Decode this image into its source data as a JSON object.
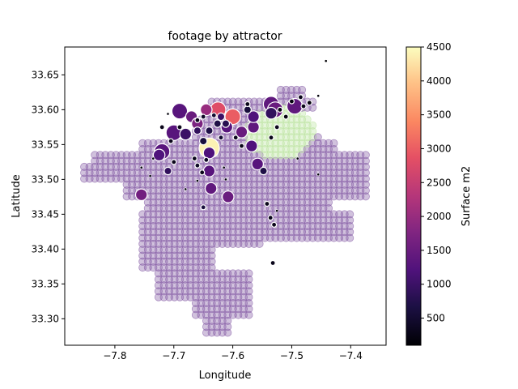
{
  "chart_data": {
    "type": "scatter",
    "title": "footage by attractor",
    "xlabel": "Longitude",
    "ylabel": "Latitude",
    "xlim": [
      -7.885,
      -7.34
    ],
    "ylim": [
      33.262,
      33.69
    ],
    "xticks": [
      -7.8,
      -7.7,
      -7.6,
      -7.5,
      -7.4
    ],
    "xtick_labels": [
      "−7.8",
      "−7.7",
      "−7.6",
      "−7.5",
      "−7.4"
    ],
    "yticks": [
      33.3,
      33.35,
      33.4,
      33.45,
      33.5,
      33.55,
      33.6,
      33.65
    ],
    "ytick_labels": [
      "33.30",
      "33.35",
      "33.40",
      "33.45",
      "33.50",
      "33.55",
      "33.60",
      "33.65"
    ],
    "grid": false,
    "colorbar": {
      "label": "Surface m2",
      "colormap": "magma",
      "range": [
        100,
        4500
      ],
      "ticks": [
        500,
        1000,
        1500,
        2000,
        2500,
        3000,
        3500,
        4000,
        4500
      ],
      "tick_labels": [
        "500",
        "1000",
        "1500",
        "2000",
        "2500",
        "3000",
        "3500",
        "4000",
        "4500"
      ]
    },
    "background_grid": {
      "description_values": "regular lattice of semi-transparent markers over the city area, mostly ~1600 m2 (purple) with greenish-yellow highlights near -7.52,33.57",
      "color": "#7b4f9e",
      "opacity": 0.35
    },
    "series": [
      {
        "points": [
          {
            "lon": -7.69,
            "lat": 33.598,
            "value": 1300,
            "size": "l"
          },
          {
            "lon": -7.67,
            "lat": 33.59,
            "value": 1500,
            "size": "m"
          },
          {
            "lon": -7.66,
            "lat": 33.58,
            "value": 1700,
            "size": "m"
          },
          {
            "lon": -7.645,
            "lat": 33.6,
            "value": 2000,
            "size": "m"
          },
          {
            "lon": -7.625,
            "lat": 33.6,
            "value": 2800,
            "size": "l"
          },
          {
            "lon": -7.6,
            "lat": 33.59,
            "value": 3000,
            "size": "l"
          },
          {
            "lon": -7.64,
            "lat": 33.545,
            "value": 4400,
            "size": "xl"
          },
          {
            "lon": -7.7,
            "lat": 33.567,
            "value": 1300,
            "size": "l"
          },
          {
            "lon": -7.72,
            "lat": 33.54,
            "value": 1300,
            "size": "l"
          },
          {
            "lon": -7.725,
            "lat": 33.535,
            "value": 1200,
            "size": "m"
          },
          {
            "lon": -7.71,
            "lat": 33.512,
            "value": 900,
            "size": "s"
          },
          {
            "lon": -7.68,
            "lat": 33.565,
            "value": 1000,
            "size": "m"
          },
          {
            "lon": -7.66,
            "lat": 33.57,
            "value": 900,
            "size": "s"
          },
          {
            "lon": -7.64,
            "lat": 33.538,
            "value": 1200,
            "size": "m"
          },
          {
            "lon": -7.64,
            "lat": 33.512,
            "value": 1300,
            "size": "m"
          },
          {
            "lon": -7.637,
            "lat": 33.487,
            "value": 1400,
            "size": "m"
          },
          {
            "lon": -7.608,
            "lat": 33.475,
            "value": 1500,
            "size": "m"
          },
          {
            "lon": -7.65,
            "lat": 33.46,
            "value": 600,
            "size": "xs"
          },
          {
            "lon": -7.755,
            "lat": 33.478,
            "value": 1600,
            "size": "m"
          },
          {
            "lon": -7.61,
            "lat": 33.575,
            "value": 1300,
            "size": "m"
          },
          {
            "lon": -7.585,
            "lat": 33.568,
            "value": 1500,
            "size": "m"
          },
          {
            "lon": -7.568,
            "lat": 33.548,
            "value": 1200,
            "size": "m"
          },
          {
            "lon": -7.565,
            "lat": 33.575,
            "value": 1400,
            "size": "m"
          },
          {
            "lon": -7.558,
            "lat": 33.522,
            "value": 1300,
            "size": "m"
          },
          {
            "lon": -7.548,
            "lat": 33.512,
            "value": 700,
            "size": "s"
          },
          {
            "lon": -7.535,
            "lat": 33.608,
            "value": 1400,
            "size": "l"
          },
          {
            "lon": -7.528,
            "lat": 33.6,
            "value": 1500,
            "size": "l"
          },
          {
            "lon": -7.535,
            "lat": 33.595,
            "value": 900,
            "size": "m"
          },
          {
            "lon": -7.495,
            "lat": 33.605,
            "value": 1400,
            "size": "l"
          },
          {
            "lon": -7.575,
            "lat": 33.6,
            "value": 600,
            "size": "s"
          },
          {
            "lon": -7.565,
            "lat": 33.59,
            "value": 1200,
            "size": "m"
          },
          {
            "lon": -7.62,
            "lat": 33.59,
            "value": 1000,
            "size": "s"
          },
          {
            "lon": -7.612,
            "lat": 33.58,
            "value": 800,
            "size": "s"
          },
          {
            "lon": -7.626,
            "lat": 33.58,
            "value": 700,
            "size": "s"
          },
          {
            "lon": -7.64,
            "lat": 33.57,
            "value": 700,
            "size": "s"
          },
          {
            "lon": -7.65,
            "lat": 33.555,
            "value": 600,
            "size": "s"
          },
          {
            "lon": -7.62,
            "lat": 33.56,
            "value": 500,
            "size": "xs"
          },
          {
            "lon": -7.66,
            "lat": 33.52,
            "value": 400,
            "size": "xs"
          },
          {
            "lon": -7.652,
            "lat": 33.51,
            "value": 300,
            "size": "xs"
          },
          {
            "lon": -7.7,
            "lat": 33.525,
            "value": 300,
            "size": "xs"
          },
          {
            "lon": -7.69,
            "lat": 33.575,
            "value": 300,
            "size": "xs"
          },
          {
            "lon": -7.595,
            "lat": 33.56,
            "value": 300,
            "size": "xs"
          },
          {
            "lon": -7.585,
            "lat": 33.548,
            "value": 300,
            "size": "xs"
          },
          {
            "lon": -7.575,
            "lat": 33.608,
            "value": 300,
            "size": "xs"
          },
          {
            "lon": -7.535,
            "lat": 33.56,
            "value": 300,
            "size": "xs"
          },
          {
            "lon": -7.525,
            "lat": 33.575,
            "value": 300,
            "size": "xs"
          },
          {
            "lon": -7.52,
            "lat": 33.6,
            "value": 200,
            "size": "xs"
          },
          {
            "lon": -7.51,
            "lat": 33.59,
            "value": 200,
            "size": "xs"
          },
          {
            "lon": -7.5,
            "lat": 33.612,
            "value": 200,
            "size": "xs"
          },
          {
            "lon": -7.485,
            "lat": 33.618,
            "value": 300,
            "size": "xs"
          },
          {
            "lon": -7.48,
            "lat": 33.605,
            "value": 300,
            "size": "xs"
          },
          {
            "lon": -7.47,
            "lat": 33.61,
            "value": 200,
            "size": "xs"
          },
          {
            "lon": -7.455,
            "lat": 33.62,
            "value": 150,
            "size": "xxs"
          },
          {
            "lon": -7.442,
            "lat": 33.67,
            "value": 100,
            "size": "xxs"
          },
          {
            "lon": -7.542,
            "lat": 33.465,
            "value": 300,
            "size": "xs"
          },
          {
            "lon": -7.536,
            "lat": 33.445,
            "value": 300,
            "size": "xs"
          },
          {
            "lon": -7.53,
            "lat": 33.435,
            "value": 300,
            "size": "xs"
          },
          {
            "lon": -7.532,
            "lat": 33.38,
            "value": 300,
            "size": "xs"
          },
          {
            "lon": -7.525,
            "lat": 33.455,
            "value": 150,
            "size": "xxs"
          },
          {
            "lon": -7.755,
            "lat": 33.517,
            "value": 150,
            "size": "xxs"
          },
          {
            "lon": -7.74,
            "lat": 33.505,
            "value": 150,
            "size": "xxs"
          },
          {
            "lon": -7.735,
            "lat": 33.53,
            "value": 150,
            "size": "xxs"
          },
          {
            "lon": -7.68,
            "lat": 33.486,
            "value": 150,
            "size": "xxs"
          },
          {
            "lon": -7.66,
            "lat": 33.498,
            "value": 150,
            "size": "xxs"
          },
          {
            "lon": -7.615,
            "lat": 33.517,
            "value": 150,
            "size": "xxs"
          },
          {
            "lon": -7.612,
            "lat": 33.5,
            "value": 150,
            "size": "xxs"
          },
          {
            "lon": -7.49,
            "lat": 33.53,
            "value": 150,
            "size": "xxs"
          },
          {
            "lon": -7.455,
            "lat": 33.507,
            "value": 150,
            "size": "xxs"
          },
          {
            "lon": -7.71,
            "lat": 33.594,
            "value": 150,
            "size": "xxs"
          },
          {
            "lon": -7.72,
            "lat": 33.575,
            "value": 300,
            "size": "xs"
          },
          {
            "lon": -7.705,
            "lat": 33.555,
            "value": 300,
            "size": "xs"
          },
          {
            "lon": -7.66,
            "lat": 33.585,
            "value": 300,
            "size": "xs"
          },
          {
            "lon": -7.65,
            "lat": 33.59,
            "value": 400,
            "size": "xs"
          },
          {
            "lon": -7.632,
            "lat": 33.592,
            "value": 500,
            "size": "xs"
          },
          {
            "lon": -7.645,
            "lat": 33.528,
            "value": 400,
            "size": "xs"
          },
          {
            "lon": -7.665,
            "lat": 33.53,
            "value": 300,
            "size": "xs"
          }
        ]
      }
    ]
  }
}
